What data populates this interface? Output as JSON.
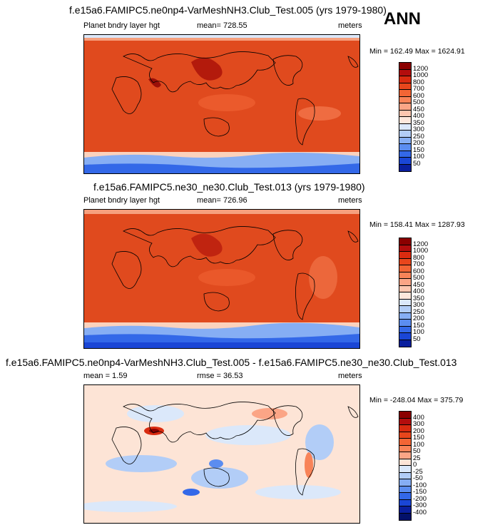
{
  "panels": [
    {
      "title": "f.e15a6.FAMIPC5.ne0np4-VarMeshNH3.Club_Test.005 (yrs 1979-1980)",
      "left_label": "Planet bndry layer hgt",
      "center_label": "mean= 728.55",
      "right_label": "meters",
      "minmax": "Min = 162.49 Max = 1624.91"
    },
    {
      "title": "f.e15a6.FAMIPC5.ne30_ne30.Club_Test.013 (yrs 1979-1980)",
      "left_label": "Planet bndry layer hgt",
      "center_label": "mean= 726.96",
      "right_label": "meters",
      "minmax": "Min = 158.41 Max = 1287.93"
    },
    {
      "title": "f.e15a6.FAMIPC5.ne0np4-VarMeshNH3.Club_Test.005 - f.e15a6.FAMIPC5.ne30_ne30.Club_Test.013",
      "left_label": "mean =   1.59",
      "center_label": "rmse =  36.53",
      "right_label": "meters",
      "minmax": "Min = -248.04 Max = 375.79"
    }
  ],
  "season": "ANN",
  "colorbars": {
    "abs": {
      "labels": [
        "1200",
        "1000",
        "800",
        "700",
        "600",
        "500",
        "450",
        "400",
        "350",
        "300",
        "250",
        "200",
        "150",
        "100",
        "50"
      ],
      "colors": [
        "#8b0000",
        "#b30d0d",
        "#d92b10",
        "#e8461c",
        "#f26535",
        "#f88358",
        "#fba586",
        "#fdc7b0",
        "#fde8dc",
        "#dbe8fa",
        "#b2cdf7",
        "#86aef4",
        "#5b8df0",
        "#3368e8",
        "#1a46d6",
        "#0a1f9e"
      ]
    },
    "diff": {
      "labels": [
        "400",
        "300",
        "200",
        "150",
        "100",
        "50",
        "25",
        "0",
        "-25",
        "-50",
        "-100",
        "-150",
        "-200",
        "-300",
        "-400"
      ],
      "colors": [
        "#8b0000",
        "#b30d0d",
        "#d92b10",
        "#e8461c",
        "#f26535",
        "#f88358",
        "#fba586",
        "#fde4d6",
        "#dbe8fa",
        "#b2cdf7",
        "#86aef4",
        "#5b8df0",
        "#3368e8",
        "#1a46d6",
        "#0a1f9e",
        "#03116a"
      ]
    }
  }
}
